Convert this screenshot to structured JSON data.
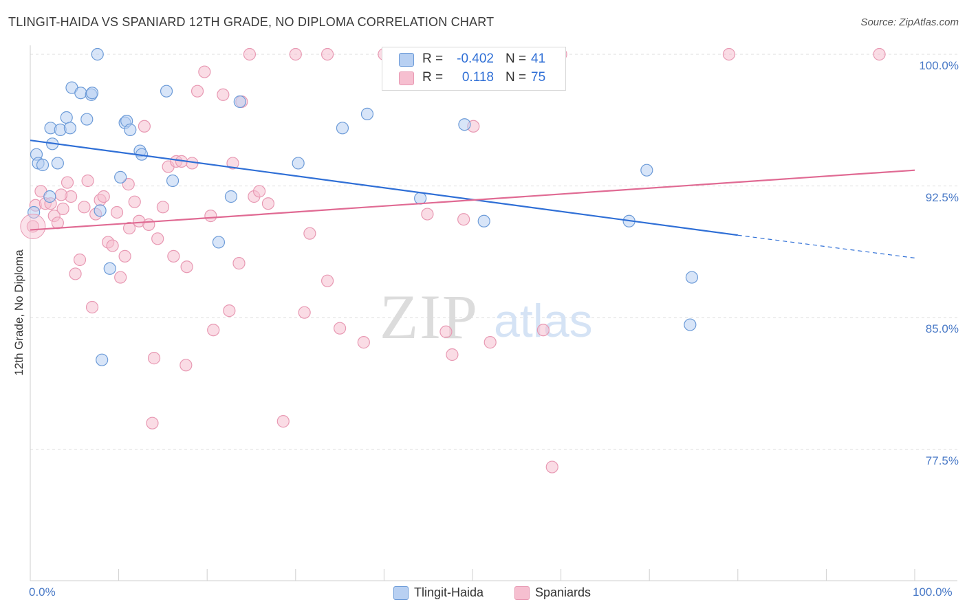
{
  "title": "TLINGIT-HAIDA VS SPANIARD 12TH GRADE, NO DIPLOMA CORRELATION CHART",
  "source": "Source: ZipAtlas.com",
  "watermark": {
    "zip": "ZIP",
    "atlas": "atlas"
  },
  "colors": {
    "blue_fill": "#b8d0f2",
    "blue_stroke": "#6c9bd8",
    "blue_line": "#2f6fd6",
    "pink_fill": "#f6bfd0",
    "pink_stroke": "#e899b3",
    "pink_line": "#e06a93",
    "grid": "#dedede",
    "axis_text": "#4a7ac7"
  },
  "legend": {
    "rows": [
      {
        "r_label": "R =",
        "r_value": "-0.402",
        "n_label": "N =",
        "n_value": "41"
      },
      {
        "r_label": "R =",
        "r_value": "0.118",
        "n_label": "N =",
        "n_value": "75"
      }
    ],
    "series": [
      "Tlingit-Haida",
      "Spaniards"
    ]
  },
  "chart_data": {
    "type": "scatter",
    "title": "TLINGIT-HAIDA VS SPANIARD 12TH GRADE, NO DIPLOMA CORRELATION CHART",
    "xlabel": "",
    "ylabel": "12th Grade, No Diploma",
    "xlim": [
      0,
      100
    ],
    "ylim": [
      70.0,
      100.8
    ],
    "x_tick_labels": [
      "0.0%",
      "100.0%"
    ],
    "y_ticks": [
      100.0,
      92.5,
      85.0,
      77.5
    ],
    "y_tick_labels": [
      "100.0%",
      "92.5%",
      "85.0%",
      "77.5%"
    ],
    "grid": "horizontal dashed",
    "legend_position": "top-center",
    "series": [
      {
        "name": "Tlingit-Haida",
        "color": "#6c9bd8",
        "trend": {
          "x": [
            0,
            80,
            100
          ],
          "y": [
            95.1,
            89.7,
            88.4
          ],
          "r": -0.402,
          "n": 41
        },
        "points": [
          [
            0.4,
            91.0
          ],
          [
            0.7,
            94.3
          ],
          [
            0.9,
            93.8
          ],
          [
            1.4,
            93.7
          ],
          [
            2.2,
            91.9
          ],
          [
            2.3,
            95.8
          ],
          [
            2.5,
            94.9
          ],
          [
            3.1,
            93.8
          ],
          [
            3.4,
            95.7
          ],
          [
            4.1,
            96.4
          ],
          [
            4.5,
            95.8
          ],
          [
            4.7,
            98.1
          ],
          [
            5.7,
            97.8
          ],
          [
            6.4,
            96.3
          ],
          [
            6.9,
            97.7
          ],
          [
            7.0,
            97.8
          ],
          [
            7.6,
            100.0
          ],
          [
            7.9,
            91.1
          ],
          [
            8.1,
            82.6
          ],
          [
            9.0,
            87.8
          ],
          [
            10.2,
            93.0
          ],
          [
            10.7,
            96.1
          ],
          [
            10.9,
            96.2
          ],
          [
            11.3,
            95.7
          ],
          [
            12.4,
            94.5
          ],
          [
            12.6,
            94.3
          ],
          [
            15.4,
            97.9
          ],
          [
            16.1,
            92.8
          ],
          [
            21.3,
            89.3
          ],
          [
            22.7,
            91.9
          ],
          [
            23.7,
            97.3
          ],
          [
            30.3,
            93.8
          ],
          [
            35.3,
            95.8
          ],
          [
            38.1,
            96.6
          ],
          [
            44.1,
            91.8
          ],
          [
            49.1,
            96.0
          ],
          [
            51.3,
            90.5
          ],
          [
            67.7,
            90.5
          ],
          [
            69.7,
            93.4
          ],
          [
            74.8,
            87.3
          ],
          [
            74.6,
            84.6
          ]
        ]
      },
      {
        "name": "Spaniards",
        "color": "#e899b3",
        "trend": {
          "x": [
            0,
            100
          ],
          "y": [
            90.0,
            93.4
          ],
          "r": 0.118,
          "n": 75
        },
        "points": [
          [
            0.3,
            90.2
          ],
          [
            0.6,
            91.4
          ],
          [
            1.2,
            92.2
          ],
          [
            1.7,
            91.5
          ],
          [
            2.3,
            91.5
          ],
          [
            2.7,
            90.8
          ],
          [
            3.1,
            90.4
          ],
          [
            3.7,
            91.2
          ],
          [
            4.2,
            92.7
          ],
          [
            4.6,
            91.9
          ],
          [
            5.1,
            87.5
          ],
          [
            5.6,
            88.3
          ],
          [
            6.1,
            91.3
          ],
          [
            6.5,
            92.8
          ],
          [
            7.0,
            85.6
          ],
          [
            7.4,
            90.9
          ],
          [
            7.9,
            91.7
          ],
          [
            8.3,
            91.9
          ],
          [
            8.8,
            89.3
          ],
          [
            9.3,
            89.1
          ],
          [
            9.8,
            91.0
          ],
          [
            10.2,
            87.3
          ],
          [
            10.7,
            88.5
          ],
          [
            11.2,
            90.1
          ],
          [
            11.8,
            91.6
          ],
          [
            12.3,
            90.5
          ],
          [
            12.9,
            95.9
          ],
          [
            13.4,
            90.3
          ],
          [
            14.0,
            82.7
          ],
          [
            14.4,
            89.5
          ],
          [
            15.0,
            91.3
          ],
          [
            15.6,
            93.6
          ],
          [
            16.2,
            88.5
          ],
          [
            16.5,
            93.9
          ],
          [
            17.1,
            93.9
          ],
          [
            17.7,
            87.9
          ],
          [
            18.3,
            93.8
          ],
          [
            18.9,
            97.9
          ],
          [
            19.7,
            99.0
          ],
          [
            20.4,
            90.8
          ],
          [
            20.7,
            84.3
          ],
          [
            21.8,
            97.7
          ],
          [
            22.5,
            85.4
          ],
          [
            22.9,
            93.8
          ],
          [
            23.6,
            88.1
          ],
          [
            23.9,
            97.3
          ],
          [
            24.8,
            100.0
          ],
          [
            25.3,
            91.9
          ],
          [
            25.9,
            92.2
          ],
          [
            26.9,
            91.5
          ],
          [
            17.6,
            82.3
          ],
          [
            13.8,
            79.0
          ],
          [
            28.6,
            79.1
          ],
          [
            30.0,
            100.0
          ],
          [
            31.0,
            85.3
          ],
          [
            31.6,
            89.8
          ],
          [
            33.6,
            100.0
          ],
          [
            33.6,
            87.1
          ],
          [
            35.0,
            84.4
          ],
          [
            37.7,
            83.6
          ],
          [
            40.0,
            100.0
          ],
          [
            44.9,
            90.9
          ],
          [
            47.0,
            84.2
          ],
          [
            47.7,
            82.9
          ],
          [
            49.0,
            90.6
          ],
          [
            50.0,
            100.0
          ],
          [
            50.1,
            95.9
          ],
          [
            52.0,
            83.6
          ],
          [
            58.0,
            84.3
          ],
          [
            59.0,
            76.5
          ],
          [
            60.0,
            100.0
          ],
          [
            79.0,
            100.0
          ],
          [
            96.0,
            100.0
          ],
          [
            11.1,
            92.6
          ],
          [
            3.5,
            92.0
          ]
        ]
      }
    ]
  }
}
